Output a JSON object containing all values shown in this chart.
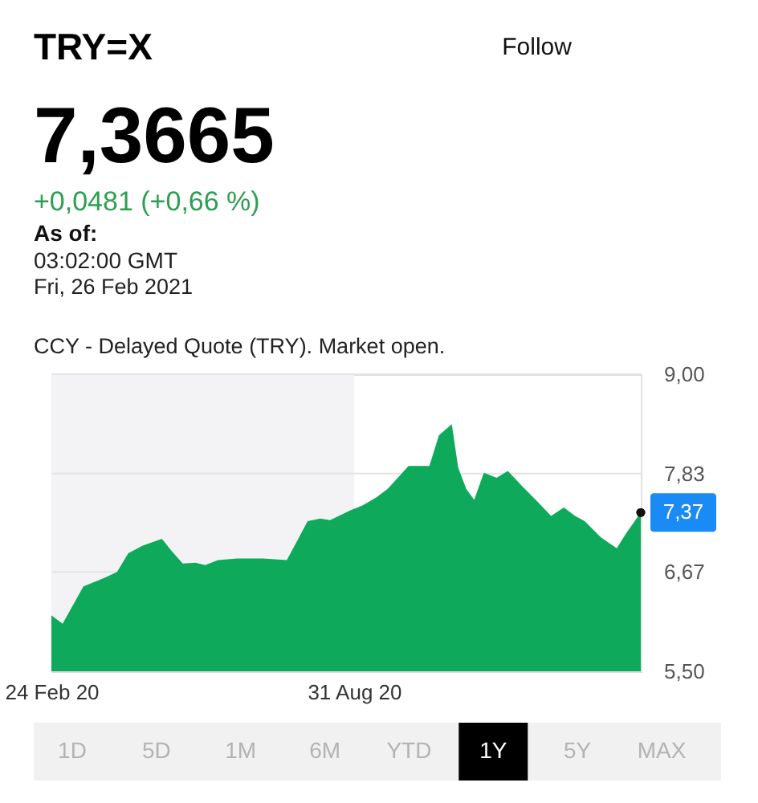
{
  "chart_data": {
    "type": "area",
    "title": "TRY=X",
    "subtitle": "7,3665",
    "x": [
      "2020-02-24",
      "2020-03-02",
      "2020-03-15",
      "2020-03-28",
      "2020-04-05",
      "2020-04-12",
      "2020-04-21",
      "2020-05-03",
      "2020-05-09",
      "2020-05-16",
      "2020-05-24",
      "2020-05-30",
      "2020-06-07",
      "2020-06-19",
      "2020-07-05",
      "2020-07-20",
      "2020-07-26",
      "2020-08-02",
      "2020-08-10",
      "2020-08-16",
      "2020-08-29",
      "2020-09-05",
      "2020-09-14",
      "2020-09-21",
      "2020-10-04",
      "2020-10-17",
      "2020-10-23",
      "2020-10-31",
      "2020-11-04",
      "2020-11-09",
      "2020-11-14",
      "2020-11-20",
      "2020-11-28",
      "2020-12-05",
      "2020-12-14",
      "2020-12-24",
      "2021-01-01",
      "2021-01-09",
      "2021-01-16",
      "2021-01-22",
      "2021-02-01",
      "2021-02-11",
      "2021-02-17",
      "2021-02-26"
    ],
    "series": [
      {
        "color": "#0fa95b",
        "values": [
          6.16,
          6.06,
          6.5,
          6.6,
          6.67,
          6.89,
          6.98,
          7.06,
          6.92,
          6.77,
          6.78,
          6.75,
          6.81,
          6.83,
          6.83,
          6.81,
          7.02,
          7.27,
          7.3,
          7.28,
          7.4,
          7.45,
          7.55,
          7.65,
          7.92,
          7.92,
          8.28,
          8.41,
          7.9,
          7.65,
          7.52,
          7.84,
          7.78,
          7.86,
          7.68,
          7.49,
          7.33,
          7.43,
          7.33,
          7.27,
          7.08,
          6.95,
          7.13,
          7.37
        ]
      },
      {
        "type": "scatter",
        "color": "#111111",
        "x": [
          "2021-02-26"
        ],
        "values": [
          7.37
        ],
        "value_labels": [
          "7,37"
        ]
      }
    ],
    "xlim": [
      "2020-02-24",
      "2021-02-26"
    ],
    "xticks": [
      {
        "value": "2020-02-24",
        "label": "24 Feb 20"
      },
      {
        "value": "2020-08-31",
        "label": "31 Aug 20"
      }
    ],
    "ylim": [
      5.5,
      9.0
    ],
    "yticks": [
      {
        "value": 5.5,
        "label": "5,50"
      },
      {
        "value": 6.67,
        "label": "6,67"
      },
      {
        "value": 7.83,
        "label": "7,83"
      },
      {
        "value": 9.0,
        "label": "9,00"
      }
    ],
    "grid": "y",
    "bands": [
      {
        "axis": "x",
        "from": "2020-02-24",
        "to": "2020-08-31",
        "color": "#f3f3f5"
      }
    ],
    "annotations": [
      "+0,0481 (+0,66 %)",
      "As of:",
      "03:02:00 GMT",
      "Fri, 26 Feb 2021",
      "CCY - Delayed Quote (TRY). Market open.",
      "Follow",
      "1D",
      "5D",
      "1M",
      "6M",
      "YTD",
      "1Y",
      "5Y",
      "MAX"
    ]
  }
}
